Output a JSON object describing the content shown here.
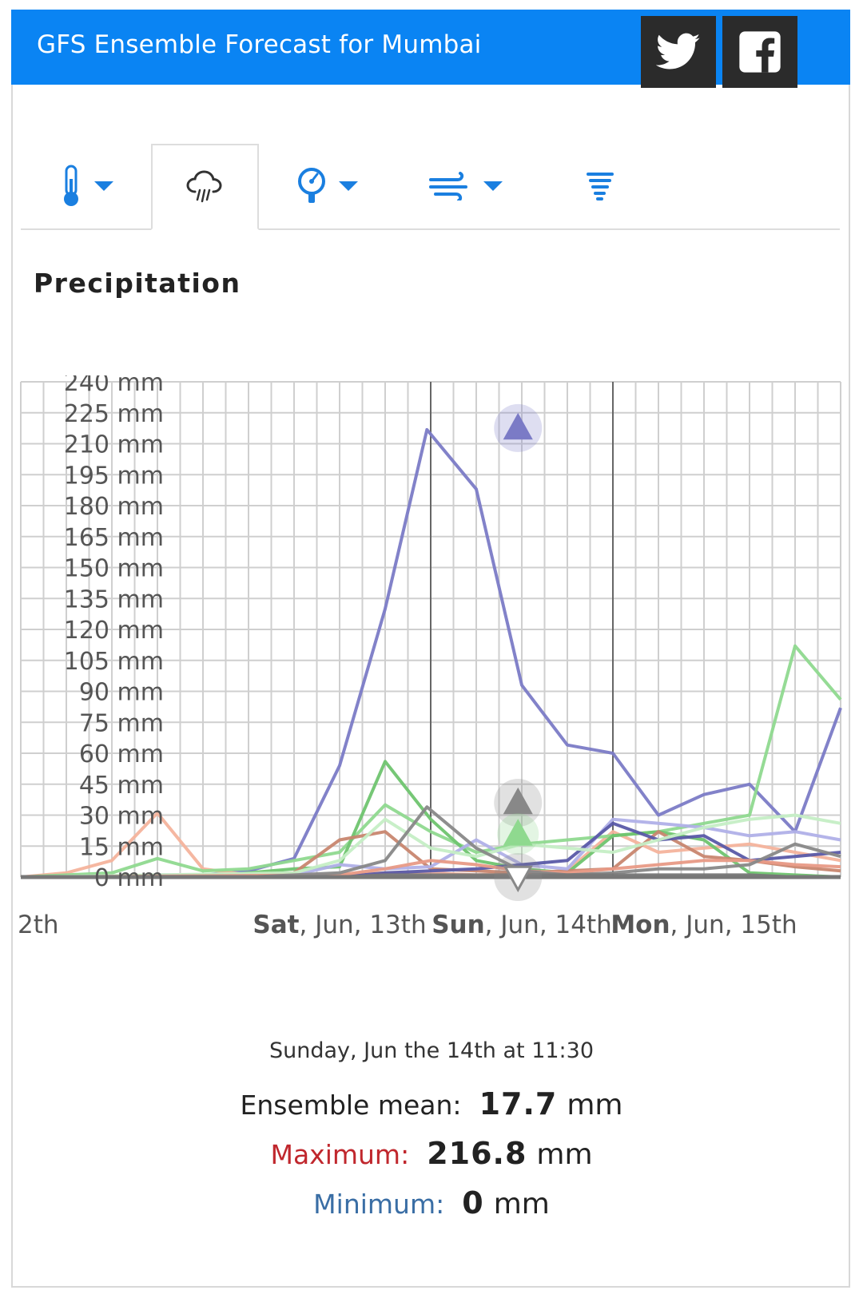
{
  "header": {
    "title": "GFS Ensemble Forecast for Mumbai",
    "accent_color": "#0a84f3",
    "twitter_icon": "twitter-icon",
    "facebook_icon": "facebook-icon"
  },
  "tabs": [
    {
      "icon": "thermometer-icon",
      "has_dropdown": true,
      "active": false
    },
    {
      "icon": "rain-cloud-icon",
      "has_dropdown": false,
      "active": true
    },
    {
      "icon": "pressure-gauge-icon",
      "has_dropdown": true,
      "active": false
    },
    {
      "icon": "wind-icon",
      "has_dropdown": true,
      "active": false
    },
    {
      "icon": "tornado-icon",
      "has_dropdown": false,
      "active": false
    }
  ],
  "section_title": "Precipitation",
  "chart_data": {
    "type": "line",
    "title": "",
    "ylabel": "",
    "ylim": [
      0,
      240
    ],
    "y_ticks": [
      "0 mm",
      "15 mm",
      "30 mm",
      "45 mm",
      "60 mm",
      "75 mm",
      "90 mm",
      "105 mm",
      "120 mm",
      "135 mm",
      "150 mm",
      "165 mm",
      "180 mm",
      "195 mm",
      "210 mm",
      "225 mm",
      "240 mm"
    ],
    "x_unit_hours": 6,
    "x_range_hours": [
      -30,
      78
    ],
    "day_labels": [
      {
        "bold": "",
        "rest": "2th",
        "hour": -34
      },
      {
        "bold": "Sat",
        "rest": ", Jun, 13th",
        "hour": 12
      },
      {
        "bold": "Sun",
        "rest": ", Jun, 14th",
        "hour": 36
      },
      {
        "bold": "Mon",
        "rest": ", Jun, 15th",
        "hour": 60
      }
    ],
    "day_boundaries_hours": [
      24,
      48
    ],
    "hover_hour": 35.5,
    "series": [
      {
        "color": "#7b7bc6",
        "values": [
          [
            -30,
            0
          ],
          [
            -18,
            0
          ],
          [
            -12,
            1
          ],
          [
            -6,
            1
          ],
          [
            0,
            3
          ],
          [
            6,
            9
          ],
          [
            12,
            54
          ],
          [
            18,
            130
          ],
          [
            23.5,
            216.8
          ],
          [
            30,
            188
          ],
          [
            36,
            93
          ],
          [
            42,
            64
          ],
          [
            48,
            60
          ],
          [
            54,
            30
          ],
          [
            60,
            40
          ],
          [
            66,
            45
          ],
          [
            72,
            22
          ],
          [
            78,
            82
          ]
        ]
      },
      {
        "color": "#f4b39c",
        "values": [
          [
            -30,
            0
          ],
          [
            -24,
            2
          ],
          [
            -18,
            8
          ],
          [
            -12,
            31
          ],
          [
            -6,
            4
          ],
          [
            0,
            1
          ],
          [
            6,
            0
          ],
          [
            12,
            1
          ],
          [
            18,
            2
          ],
          [
            24,
            2
          ],
          [
            30,
            1
          ],
          [
            36,
            2
          ],
          [
            42,
            3
          ],
          [
            48,
            22
          ],
          [
            54,
            12
          ],
          [
            60,
            14
          ],
          [
            66,
            16
          ],
          [
            72,
            12
          ],
          [
            78,
            8
          ]
        ]
      },
      {
        "color": "#8fd98f",
        "values": [
          [
            -30,
            0
          ],
          [
            -24,
            1
          ],
          [
            -18,
            2
          ],
          [
            -12,
            9
          ],
          [
            -6,
            3
          ],
          [
            0,
            4
          ],
          [
            6,
            8
          ],
          [
            12,
            12
          ],
          [
            18,
            35
          ],
          [
            24,
            22
          ],
          [
            30,
            12
          ],
          [
            36,
            16
          ],
          [
            42,
            18
          ],
          [
            48,
            20
          ],
          [
            54,
            22
          ],
          [
            60,
            26
          ],
          [
            66,
            30
          ],
          [
            72,
            112
          ],
          [
            78,
            86
          ]
        ]
      },
      {
        "color": "#6fc46f",
        "values": [
          [
            -30,
            0
          ],
          [
            -6,
            0
          ],
          [
            0,
            2
          ],
          [
            6,
            4
          ],
          [
            12,
            5
          ],
          [
            18,
            56
          ],
          [
            24,
            28
          ],
          [
            30,
            8
          ],
          [
            36,
            4
          ],
          [
            42,
            2
          ],
          [
            48,
            20
          ],
          [
            54,
            22
          ],
          [
            60,
            18
          ],
          [
            66,
            2
          ],
          [
            72,
            1
          ],
          [
            78,
            0
          ]
        ]
      },
      {
        "color": "#c8866f",
        "values": [
          [
            -30,
            0
          ],
          [
            0,
            1
          ],
          [
            6,
            2
          ],
          [
            12,
            18
          ],
          [
            18,
            22
          ],
          [
            24,
            4
          ],
          [
            30,
            3
          ],
          [
            36,
            2
          ],
          [
            42,
            3
          ],
          [
            48,
            4
          ],
          [
            54,
            22
          ],
          [
            60,
            10
          ],
          [
            66,
            8
          ],
          [
            72,
            5
          ],
          [
            78,
            3
          ]
        ]
      },
      {
        "color": "#b0b0e8",
        "values": [
          [
            -30,
            0
          ],
          [
            6,
            1
          ],
          [
            12,
            6
          ],
          [
            18,
            4
          ],
          [
            24,
            5
          ],
          [
            30,
            18
          ],
          [
            36,
            6
          ],
          [
            42,
            4
          ],
          [
            48,
            28
          ],
          [
            54,
            26
          ],
          [
            60,
            24
          ],
          [
            66,
            20
          ],
          [
            72,
            22
          ],
          [
            78,
            18
          ]
        ]
      },
      {
        "color": "#5a5aa8",
        "values": [
          [
            -30,
            0
          ],
          [
            12,
            0
          ],
          [
            18,
            2
          ],
          [
            24,
            3
          ],
          [
            30,
            4
          ],
          [
            36,
            6
          ],
          [
            42,
            8
          ],
          [
            48,
            26
          ],
          [
            54,
            18
          ],
          [
            60,
            20
          ],
          [
            66,
            8
          ],
          [
            72,
            10
          ],
          [
            78,
            12
          ]
        ]
      },
      {
        "color": "#c5eec5",
        "values": [
          [
            -30,
            0
          ],
          [
            6,
            2
          ],
          [
            12,
            8
          ],
          [
            18,
            28
          ],
          [
            24,
            14
          ],
          [
            30,
            10
          ],
          [
            36,
            16
          ],
          [
            42,
            14
          ],
          [
            48,
            12
          ],
          [
            54,
            18
          ],
          [
            60,
            24
          ],
          [
            66,
            28
          ],
          [
            72,
            30
          ],
          [
            78,
            26
          ]
        ]
      },
      {
        "color": "#e89a86",
        "values": [
          [
            -30,
            0
          ],
          [
            12,
            1
          ],
          [
            18,
            4
          ],
          [
            24,
            8
          ],
          [
            30,
            6
          ],
          [
            36,
            3
          ],
          [
            42,
            2
          ],
          [
            48,
            4
          ],
          [
            54,
            6
          ],
          [
            60,
            8
          ],
          [
            66,
            8
          ],
          [
            72,
            6
          ],
          [
            78,
            5
          ]
        ]
      },
      {
        "color": "#888888",
        "values": [
          [
            -30,
            0
          ],
          [
            0,
            0
          ],
          [
            6,
            1
          ],
          [
            12,
            2
          ],
          [
            18,
            8
          ],
          [
            23.5,
            34
          ],
          [
            30,
            14
          ],
          [
            36,
            3
          ],
          [
            42,
            1
          ],
          [
            48,
            2
          ],
          [
            54,
            4
          ],
          [
            60,
            4
          ],
          [
            66,
            6
          ],
          [
            72,
            16
          ],
          [
            78,
            10
          ]
        ]
      },
      {
        "color": "#777777",
        "values": [
          [
            -30,
            0
          ],
          [
            12,
            0
          ],
          [
            18,
            1
          ],
          [
            24,
            1
          ],
          [
            30,
            1
          ],
          [
            36,
            1
          ],
          [
            42,
            1
          ],
          [
            48,
            1
          ],
          [
            54,
            1
          ],
          [
            60,
            1
          ],
          [
            66,
            1
          ],
          [
            72,
            0
          ],
          [
            78,
            0
          ]
        ]
      }
    ],
    "markers": {
      "max": {
        "value": 216.8,
        "color": "#7b7bc6"
      },
      "mean_up": {
        "value": 36,
        "color": "#888888"
      },
      "mean_green": {
        "value": 17.7,
        "color": "#8fd98f"
      },
      "min": {
        "value": 0,
        "color": "#888888"
      }
    }
  },
  "info": {
    "date": "Sunday, Jun the 14th at 11:30",
    "mean_label": "Ensemble mean:",
    "mean_value": "17.7",
    "max_label": "Maximum:",
    "max_value": "216.8",
    "max_color": "#c0272d",
    "min_label": "Minimum:",
    "min_value": "0",
    "min_color": "#3a6ea5",
    "unit": "mm"
  }
}
